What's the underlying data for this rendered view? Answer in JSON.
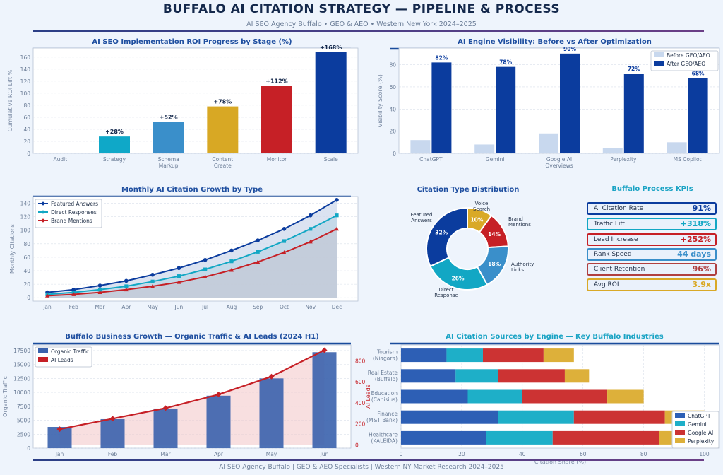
{
  "header": {
    "title": "BUFFALO AI CITATION STRATEGY  —  PIPELINE & PROCESS",
    "subtitle": "AI SEO Agency Buffalo  •  GEO & AEO  •  Western New York 2024–2025"
  },
  "footer": "AI SEO Agency Buffalo  |  GEO & AEO Specialists  |  Western NY Market Research 2024–2025",
  "colors": {
    "navy": "#0b3c9e",
    "teal": "#12a7c4",
    "red": "#c62026",
    "gold": "#d9a927",
    "blue": "#3a8fca",
    "pale": "#c8d8ee",
    "dark": "#14284b"
  },
  "chart_data": [
    {
      "id": "roi",
      "type": "bar",
      "title": "AI SEO Implementation ROI Progress by Stage (%)",
      "ylabel": "Cumulative ROI Lift %",
      "categories": [
        "Audit",
        "Strategy",
        "Schema\nMarkup",
        "Content\nCreate",
        "Monitor",
        "Scale"
      ],
      "values": [
        0,
        28,
        52,
        78,
        112,
        168
      ],
      "labels": [
        "",
        "+28%",
        "+52%",
        "+78%",
        "+112%",
        "+168%"
      ],
      "ylim": [
        0,
        175
      ],
      "yticks": [
        0,
        20,
        40,
        60,
        80,
        100,
        120,
        140,
        160
      ],
      "bar_colors": [
        "#c8d8ee",
        "#0fa8c8",
        "#3a8fca",
        "#d8a824",
        "#c62026",
        "#0b3c9e"
      ]
    },
    {
      "id": "visibility",
      "type": "bar",
      "title": "AI Engine Visibility: Before vs After Optimization",
      "ylabel": "Visibility Score (%)",
      "categories": [
        "ChatGPT",
        "Gemini",
        "Google AI\nOverviews",
        "Perplexity",
        "MS Copilot"
      ],
      "series": [
        {
          "name": "Before GEO/AEO",
          "values": [
            12,
            8,
            18,
            5,
            10
          ],
          "color": "#c8d8ee"
        },
        {
          "name": "After GEO/AEO",
          "values": [
            82,
            78,
            90,
            72,
            68
          ],
          "color": "#0b3c9e"
        }
      ],
      "labels": [
        "82%",
        "78%",
        "90%",
        "72%",
        "68%"
      ],
      "ylim": [
        0,
        95
      ],
      "yticks": [
        0,
        20,
        40,
        60,
        80
      ]
    },
    {
      "id": "growth",
      "type": "line",
      "title": "Monthly AI Citation Growth by Type",
      "ylabel": "Monthly Citations",
      "x": [
        "Jan",
        "Feb",
        "Mar",
        "Apr",
        "May",
        "Jun",
        "Jul",
        "Aug",
        "Sep",
        "Oct",
        "Nov",
        "Dec"
      ],
      "series": [
        {
          "name": "Featured Answers",
          "values": [
            8,
            12,
            18,
            25,
            34,
            44,
            56,
            70,
            85,
            102,
            122,
            145
          ],
          "color": "#0b3c9e",
          "marker": "circle"
        },
        {
          "name": "Direct Responses",
          "values": [
            5,
            8,
            12,
            17,
            24,
            32,
            42,
            54,
            68,
            84,
            102,
            122
          ],
          "color": "#12a7c4",
          "marker": "square"
        },
        {
          "name": "Brand Mentions",
          "values": [
            3,
            5,
            8,
            12,
            17,
            23,
            31,
            41,
            53,
            67,
            83,
            102
          ],
          "color": "#c62026",
          "marker": "triangle"
        }
      ],
      "ylim": [
        -5,
        150
      ],
      "yticks": [
        0,
        20,
        40,
        60,
        80,
        100,
        120,
        140
      ]
    },
    {
      "id": "distribution",
      "type": "pie",
      "title": "Citation Type Distribution",
      "slices": [
        {
          "name": "Featured\nAnswers",
          "value": 32,
          "label": "32%",
          "color": "#0b3c9e"
        },
        {
          "name": "Direct\nResponse",
          "value": 26,
          "label": "26%",
          "color": "#12a7c4"
        },
        {
          "name": "Authority\nLinks",
          "value": 18,
          "label": "18%",
          "color": "#3a8fca"
        },
        {
          "name": "Brand\nMentions",
          "value": 14,
          "label": "14%",
          "color": "#c62026"
        },
        {
          "name": "Voice\nSearch",
          "value": 10,
          "label": "10%",
          "color": "#d9a927"
        }
      ]
    },
    {
      "id": "business",
      "type": "bar",
      "title": "Buffalo Business Growth — Organic Traffic & AI Leads (2024 H1)",
      "ylabel": "Organic Traffic",
      "y2label": "AI Leads",
      "categories": [
        "Jan",
        "Feb",
        "Mar",
        "Apr",
        "May",
        "Jun"
      ],
      "series": [
        {
          "name": "Organic Traffic",
          "values": [
            3800,
            5200,
            7100,
            9400,
            12500,
            17200
          ],
          "color": "#3a62ad",
          "axis": "left",
          "kind": "bar"
        },
        {
          "name": "AI Leads",
          "values": [
            150,
            250,
            350,
            480,
            650,
            900
          ],
          "color": "#c62026",
          "axis": "right",
          "kind": "line"
        }
      ],
      "ylim": [
        0,
        18500
      ],
      "yticks": [
        0,
        2500,
        5000,
        7500,
        10000,
        12500,
        15000,
        17500
      ],
      "y2lim": [
        -30,
        950
      ],
      "y2ticks": [
        0,
        200,
        400,
        600,
        800
      ]
    },
    {
      "id": "sources",
      "type": "bar",
      "orientation": "horizontal",
      "stacked": true,
      "title": "AI Citation Sources by Engine — Key Buffalo Industries",
      "xlabel": "Citation Share (%)",
      "categories": [
        "Tourism\n(Niagara)",
        "Real Estate\n(Buffalo)",
        "Education\n(Canisius)",
        "Finance\n(M&T Bank)",
        "Healthcare\n(KALEIDA)"
      ],
      "series": [
        {
          "name": "ChatGPT",
          "values": [
            15,
            18,
            22,
            32,
            28
          ],
          "color": "#2d5fb5"
        },
        {
          "name": "Gemini",
          "values": [
            12,
            14,
            18,
            25,
            22
          ],
          "color": "#1eafc8"
        },
        {
          "name": "Google AI",
          "values": [
            20,
            22,
            28,
            30,
            35
          ],
          "color": "#cc3333"
        },
        {
          "name": "Perplexity",
          "values": [
            10,
            8,
            12,
            13,
            15
          ],
          "color": "#ddb03a"
        }
      ],
      "xlim": [
        0,
        105
      ],
      "xticks": [
        0,
        20,
        40,
        60,
        80,
        100
      ]
    }
  ],
  "kpis": {
    "title": "Buffalo Process KPIs",
    "items": [
      {
        "label": "AI Citation Rate",
        "value": "91%",
        "color": "#0b3c9e"
      },
      {
        "label": "Traffic Lift",
        "value": "+318%",
        "color": "#12a7c4"
      },
      {
        "label": "Lead Increase",
        "value": "+252%",
        "color": "#c62026"
      },
      {
        "label": "Rank Speed",
        "value": "44 days",
        "color": "#3a8fca"
      },
      {
        "label": "Client Retention",
        "value": "96%",
        "color": "#b04040"
      },
      {
        "label": "Avg ROI",
        "value": "3.9x",
        "color": "#d9a927"
      }
    ]
  }
}
